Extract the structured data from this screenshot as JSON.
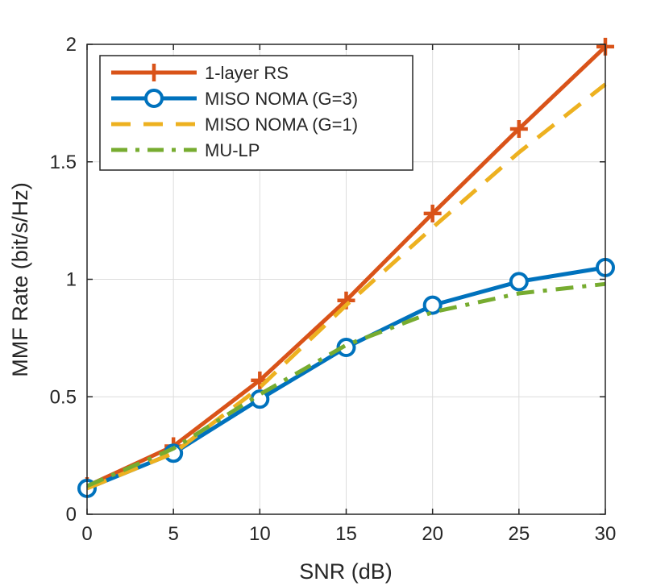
{
  "chart_data": {
    "type": "line",
    "title": "",
    "xlabel": "SNR (dB)",
    "ylabel": "MMF Rate (bit/s/Hz)",
    "xlim": [
      0,
      30
    ],
    "ylim": [
      0,
      2
    ],
    "xticks": [
      "0",
      "5",
      "10",
      "15",
      "20",
      "25",
      "30"
    ],
    "yticks": [
      "0",
      "0.5",
      "1",
      "1.5",
      "2"
    ],
    "grid": true,
    "legend_position": "top-left",
    "x": [
      0,
      5,
      10,
      15,
      20,
      25,
      30
    ],
    "series": [
      {
        "name": "1-layer RS",
        "values": [
          0.12,
          0.29,
          0.57,
          0.91,
          1.28,
          1.64,
          1.99
        ],
        "color": "#D95319",
        "style": "solid",
        "marker": "plus"
      },
      {
        "name": "MISO NOMA (G=3)",
        "values": [
          0.11,
          0.26,
          0.49,
          0.71,
          0.89,
          0.99,
          1.05
        ],
        "color": "#0072BD",
        "style": "solid",
        "marker": "circle"
      },
      {
        "name": "MISO NOMA (G=1)",
        "values": [
          0.11,
          0.26,
          0.54,
          0.89,
          1.22,
          1.54,
          1.83
        ],
        "color": "#EDB120",
        "style": "dashed",
        "marker": "none"
      },
      {
        "name": "MU-LP",
        "values": [
          0.12,
          0.28,
          0.51,
          0.72,
          0.86,
          0.94,
          0.98
        ],
        "color": "#77AC30",
        "style": "dashdot",
        "marker": "none"
      }
    ]
  }
}
